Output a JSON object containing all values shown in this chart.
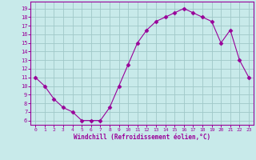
{
  "x": [
    0,
    1,
    2,
    3,
    4,
    5,
    6,
    7,
    8,
    9,
    10,
    11,
    12,
    13,
    14,
    15,
    16,
    17,
    18,
    19,
    20,
    21,
    22,
    23
  ],
  "y": [
    11,
    10,
    8.5,
    7.5,
    7,
    6,
    6,
    6,
    7.5,
    10,
    12.5,
    15,
    16.5,
    17.5,
    18,
    18.5,
    19,
    18.5,
    18,
    17.5,
    15,
    16.5,
    13,
    11
  ],
  "line_color": "#990099",
  "marker": "D",
  "marker_size": 2.5,
  "bg_color": "#c8eaea",
  "grid_color": "#a0c8c8",
  "xlabel": "Windchill (Refroidissement éolien,°C)",
  "yticks": [
    6,
    7,
    8,
    9,
    10,
    11,
    12,
    13,
    14,
    15,
    16,
    17,
    18,
    19
  ],
  "xticks": [
    0,
    1,
    2,
    3,
    4,
    5,
    6,
    7,
    8,
    9,
    10,
    11,
    12,
    13,
    14,
    15,
    16,
    17,
    18,
    19,
    20,
    21,
    22,
    23
  ],
  "xlim": [
    -0.5,
    23.5
  ],
  "ylim": [
    5.5,
    19.8
  ]
}
